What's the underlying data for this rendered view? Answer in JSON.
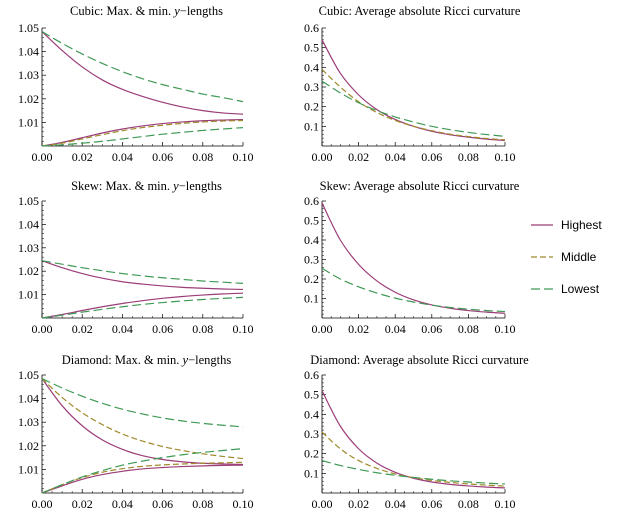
{
  "series_styles": {
    "Highest": {
      "color": "#9b3d78",
      "dash": ""
    },
    "Middle": {
      "color": "#a08a2c",
      "dash": "6,3"
    },
    "Lowest": {
      "color": "#3f9a55",
      "dash": "9,4"
    }
  },
  "legend": {
    "items": [
      "Highest",
      "Middle",
      "Lowest"
    ]
  },
  "chart_data": [
    {
      "id": "cubic-lengths",
      "type": "line",
      "title": "Cubic: Max. & min. ",
      "title_var": "y",
      "title_suffix": "−lengths",
      "xlim": [
        0,
        0.1
      ],
      "ylim": [
        1.0,
        1.05
      ],
      "x_ticks": [
        "0.00",
        "0.02",
        "0.04",
        "0.06",
        "0.08",
        "0.10"
      ],
      "y_ticks": [
        "1.01",
        "1.02",
        "1.03",
        "1.04",
        "1.05"
      ],
      "x": [
        0,
        0.01,
        0.02,
        0.03,
        0.04,
        0.05,
        0.06,
        0.07,
        0.08,
        0.09,
        0.1
      ],
      "series": [
        {
          "name": "Highest",
          "values": [
            1.0485,
            1.0405,
            1.0335,
            1.028,
            1.024,
            1.021,
            1.0185,
            1.0165,
            1.015,
            1.014,
            1.0135
          ]
        },
        {
          "name": "Highest",
          "values": [
            1.0,
            1.0015,
            1.0035,
            1.0055,
            1.0072,
            1.0085,
            1.0095,
            1.0102,
            1.0107,
            1.011,
            1.0112
          ]
        },
        {
          "name": "Middle",
          "values": [
            1.0,
            1.0012,
            1.003,
            1.0048,
            1.0065,
            1.0078,
            1.0088,
            1.0096,
            1.0102,
            1.0106,
            1.0108
          ]
        },
        {
          "name": "Lowest",
          "values": [
            1.0485,
            1.0435,
            1.039,
            1.035,
            1.0315,
            1.0285,
            1.026,
            1.024,
            1.022,
            1.0205,
            1.0188
          ]
        },
        {
          "name": "Lowest",
          "values": [
            1.0,
            1.0005,
            1.0012,
            1.002,
            1.003,
            1.004,
            1.005,
            1.0058,
            1.0066,
            1.0072,
            1.0078
          ]
        }
      ]
    },
    {
      "id": "cubic-ricci",
      "type": "line",
      "title": "Cubic: Average absolute Ricci curvature",
      "xlim": [
        0,
        0.1
      ],
      "ylim": [
        0,
        0.6
      ],
      "x_ticks": [
        "0.00",
        "0.02",
        "0.04",
        "0.06",
        "0.08",
        "0.10"
      ],
      "y_ticks": [
        "0.1",
        "0.2",
        "0.3",
        "0.4",
        "0.5",
        "0.6"
      ],
      "x": [
        0,
        0.01,
        0.02,
        0.03,
        0.04,
        0.05,
        0.06,
        0.07,
        0.08,
        0.09,
        0.1
      ],
      "series": [
        {
          "name": "Highest",
          "values": [
            0.54,
            0.37,
            0.26,
            0.185,
            0.135,
            0.1,
            0.075,
            0.057,
            0.045,
            0.035,
            0.028
          ]
        },
        {
          "name": "Middle",
          "values": [
            0.39,
            0.3,
            0.225,
            0.17,
            0.13,
            0.1,
            0.078,
            0.06,
            0.048,
            0.038,
            0.031
          ]
        },
        {
          "name": "Lowest",
          "values": [
            0.33,
            0.27,
            0.22,
            0.18,
            0.148,
            0.122,
            0.1,
            0.083,
            0.069,
            0.058,
            0.049
          ]
        }
      ]
    },
    {
      "id": "skew-lengths",
      "type": "line",
      "title": "Skew: Max. & min. ",
      "title_var": "y",
      "title_suffix": "−lengths",
      "xlim": [
        0,
        0.1
      ],
      "ylim": [
        1.0,
        1.05
      ],
      "x_ticks": [
        "0.00",
        "0.02",
        "0.04",
        "0.06",
        "0.08",
        "0.10"
      ],
      "y_ticks": [
        "1.01",
        "1.02",
        "1.03",
        "1.04",
        "1.05"
      ],
      "x": [
        0,
        0.01,
        0.02,
        0.03,
        0.04,
        0.05,
        0.06,
        0.07,
        0.08,
        0.09,
        0.1
      ],
      "series": [
        {
          "name": "Highest",
          "values": [
            1.0245,
            1.0215,
            1.019,
            1.017,
            1.0155,
            1.0145,
            1.0137,
            1.0131,
            1.0127,
            1.0124,
            1.0122
          ]
        },
        {
          "name": "Highest",
          "values": [
            1.0,
            1.0015,
            1.0032,
            1.0048,
            1.0062,
            1.0074,
            1.0084,
            1.0092,
            1.0098,
            1.0103,
            1.0106
          ]
        },
        {
          "name": "Lowest",
          "values": [
            1.0245,
            1.023,
            1.0215,
            1.0202,
            1.019,
            1.018,
            1.0172,
            1.0165,
            1.0158,
            1.0153,
            1.0148
          ]
        },
        {
          "name": "Lowest",
          "values": [
            1.0,
            1.0012,
            1.0025,
            1.0037,
            1.0048,
            1.0058,
            1.0066,
            1.0073,
            1.0079,
            1.0084,
            1.0088
          ]
        }
      ]
    },
    {
      "id": "skew-ricci",
      "type": "line",
      "title": "Skew: Average absolute Ricci curvature",
      "xlim": [
        0,
        0.1
      ],
      "ylim": [
        0,
        0.6
      ],
      "x_ticks": [
        "0.00",
        "0.02",
        "0.04",
        "0.06",
        "0.08",
        "0.10"
      ],
      "y_ticks": [
        "0.1",
        "0.2",
        "0.3",
        "0.4",
        "0.5",
        "0.6"
      ],
      "x": [
        0,
        0.01,
        0.02,
        0.03,
        0.04,
        0.05,
        0.06,
        0.07,
        0.08,
        0.09,
        0.1
      ],
      "series": [
        {
          "name": "Highest",
          "values": [
            0.59,
            0.4,
            0.275,
            0.19,
            0.132,
            0.093,
            0.067,
            0.05,
            0.038,
            0.03,
            0.024
          ]
        },
        {
          "name": "Lowest",
          "values": [
            0.255,
            0.2,
            0.16,
            0.128,
            0.102,
            0.082,
            0.066,
            0.054,
            0.045,
            0.038,
            0.033
          ]
        }
      ]
    },
    {
      "id": "diamond-lengths",
      "type": "line",
      "title": "Diamond: Max. & min. ",
      "title_var": "y",
      "title_suffix": "−lengths",
      "xlim": [
        0,
        0.1
      ],
      "ylim": [
        1.0,
        1.05
      ],
      "x_ticks": [
        "0.00",
        "0.02",
        "0.04",
        "0.06",
        "0.08",
        "0.10"
      ],
      "y_ticks": [
        "1.01",
        "1.02",
        "1.03",
        "1.04",
        "1.05"
      ],
      "x": [
        0,
        0.01,
        0.02,
        0.03,
        0.04,
        0.05,
        0.06,
        0.07,
        0.08,
        0.09,
        0.1
      ],
      "series": [
        {
          "name": "Highest",
          "values": [
            1.0485,
            1.037,
            1.0285,
            1.0225,
            1.0185,
            1.0158,
            1.0142,
            1.0132,
            1.0126,
            1.0123,
            1.0121
          ]
        },
        {
          "name": "Highest",
          "values": [
            1.0,
            1.003,
            1.0058,
            1.0078,
            1.0092,
            1.0102,
            1.0108,
            1.0112,
            1.0115,
            1.0117,
            1.0118
          ]
        },
        {
          "name": "Middle",
          "values": [
            1.0485,
            1.0405,
            1.034,
            1.029,
            1.025,
            1.022,
            1.0197,
            1.018,
            1.0166,
            1.0155,
            1.0146
          ]
        },
        {
          "name": "Middle",
          "values": [
            1.0,
            1.0035,
            1.0065,
            1.0088,
            1.0103,
            1.0113,
            1.0119,
            1.0123,
            1.0126,
            1.0128,
            1.013
          ]
        },
        {
          "name": "Lowest",
          "values": [
            1.0485,
            1.0445,
            1.041,
            1.038,
            1.0355,
            1.0335,
            1.0318,
            1.0305,
            1.0295,
            1.0287,
            1.028
          ]
        },
        {
          "name": "Lowest",
          "values": [
            1.0,
            1.0035,
            1.0068,
            1.0095,
            1.0118,
            1.0135,
            1.015,
            1.0162,
            1.0172,
            1.018,
            1.0188
          ]
        }
      ]
    },
    {
      "id": "diamond-ricci",
      "type": "line",
      "title": "Diamond: Average absolute Ricci curvature",
      "xlim": [
        0,
        0.1
      ],
      "ylim": [
        0,
        0.6
      ],
      "x_ticks": [
        "0.00",
        "0.02",
        "0.04",
        "0.06",
        "0.08",
        "0.10"
      ],
      "y_ticks": [
        "0.1",
        "0.2",
        "0.3",
        "0.4",
        "0.5",
        "0.6"
      ],
      "x": [
        0,
        0.01,
        0.02,
        0.03,
        0.04,
        0.05,
        0.06,
        0.07,
        0.08,
        0.09,
        0.1
      ],
      "series": [
        {
          "name": "Highest",
          "values": [
            0.52,
            0.34,
            0.225,
            0.152,
            0.105,
            0.075,
            0.056,
            0.044,
            0.036,
            0.03,
            0.026
          ]
        },
        {
          "name": "Middle",
          "values": [
            0.31,
            0.225,
            0.165,
            0.125,
            0.097,
            0.078,
            0.064,
            0.054,
            0.046,
            0.04,
            0.035
          ]
        },
        {
          "name": "Lowest",
          "values": [
            0.165,
            0.14,
            0.12,
            0.103,
            0.09,
            0.079,
            0.07,
            0.062,
            0.056,
            0.05,
            0.046
          ]
        }
      ]
    }
  ]
}
